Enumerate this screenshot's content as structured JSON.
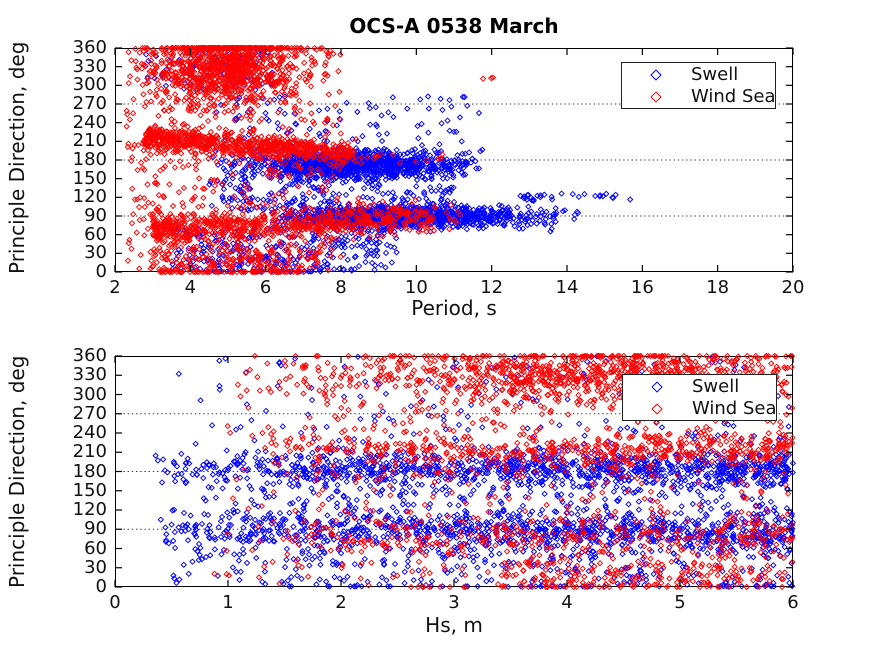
{
  "figure": {
    "title": "OCS-A 0538 March",
    "background_color": "#ffffff",
    "axis_color": "#000000"
  },
  "chart_data": [
    {
      "type": "scatter",
      "title": "OCS-A 0538 March",
      "xlabel": "Period, s",
      "ylabel": "Principle Direction, deg",
      "xlim": [
        2,
        20
      ],
      "ylim": [
        0,
        360
      ],
      "x_ticks": [
        2,
        4,
        6,
        8,
        10,
        12,
        14,
        16,
        18,
        20
      ],
      "y_ticks": [
        0,
        30,
        60,
        90,
        120,
        150,
        180,
        210,
        240,
        270,
        300,
        330,
        360
      ],
      "grid_y_dotted": [
        90,
        180,
        270
      ],
      "grid_x": false,
      "legend_position": "northeast",
      "marker": "open-diamond",
      "distribution_model": "dense point clouds approximated by sampling clusters",
      "series": [
        {
          "name": "Swell",
          "color": "#0000ff",
          "clusters": [
            {
              "n": 1050,
              "x": {
                "dist": "normal",
                "mean": 8.4,
                "sd": 1.5,
                "min": 4.6,
                "max": 11.7
              },
              "y": {
                "dist": "normal",
                "mean": 172,
                "sd": 11,
                "min": 120,
                "max": 205
              }
            },
            {
              "n": 950,
              "x": {
                "dist": "normal",
                "mean": 9.7,
                "sd": 1.8,
                "min": 6.0,
                "max": 14.4
              },
              "y": {
                "dist": "normal",
                "mean": 89,
                "sd": 8.5,
                "min": 55,
                "max": 118
              }
            },
            {
              "n": 220,
              "x": {
                "dist": "uniform",
                "min": 4.5,
                "max": 11
              },
              "y": {
                "dist": "uniform",
                "min": 98,
                "max": 160
              }
            },
            {
              "n": 280,
              "x": {
                "dist": "uniform",
                "min": 3.5,
                "max": 9.5
              },
              "y": {
                "dist": "uniform",
                "min": 2,
                "max": 70
              }
            },
            {
              "n": 90,
              "x": {
                "dist": "uniform",
                "min": 2.8,
                "max": 6.2
              },
              "y": {
                "dist": "uniform",
                "min": 290,
                "max": 360
              }
            },
            {
              "n": 100,
              "x": {
                "dist": "uniform",
                "min": 4.5,
                "max": 11.8
              },
              "y": {
                "dist": "uniform",
                "min": 195,
                "max": 285
              }
            },
            {
              "n": 30,
              "x": {
                "dist": "uniform",
                "min": 12.4,
                "max": 15.8
              },
              "y": {
                "dist": "normal",
                "mean": 121,
                "sd": 3,
                "min": 112,
                "max": 130
              }
            },
            {
              "n": 30,
              "x": {
                "dist": "uniform",
                "min": 4.5,
                "max": 7.5
              },
              "y": {
                "dist": "const",
                "value": 1
              }
            }
          ]
        },
        {
          "name": "Wind Sea",
          "color": "#ff0000",
          "clusters": [
            {
              "n": 900,
              "x": {
                "dist": "normal",
                "mean": 4.9,
                "sd": 1.0,
                "min": 2.7,
                "max": 8.0
              },
              "y": {
                "dist": "normal",
                "mean": 332,
                "sd": 30,
                "min": 180,
                "max": 360,
                "clamp": true
              }
            },
            {
              "n": 700,
              "x": {
                "dist": "power",
                "min": 2.8,
                "max": 8.4,
                "exp": 1.3
              },
              "y": {
                "dist": "normal",
                "meanFromX": [
                  231,
                  -5.0
                ],
                "sd": 9
              }
            },
            {
              "n": 620,
              "x": {
                "dist": "power",
                "min": 3.0,
                "max": 10.5,
                "exp": 1.35
              },
              "y": {
                "dist": "normal",
                "meanFromX": [
                  61,
                  2.6
                ],
                "sd": 12
              }
            },
            {
              "n": 500,
              "x": {
                "dist": "power",
                "min": 2.3,
                "max": 8.0,
                "exp": 1.15
              },
              "y": {
                "dist": "uniform",
                "min": 0,
                "max": 360
              }
            },
            {
              "n": 160,
              "x": {
                "dist": "uniform",
                "min": 3.0,
                "max": 7.5
              },
              "y": {
                "dist": "uniform",
                "min": 0,
                "max": 45
              }
            },
            {
              "n": 60,
              "x": {
                "dist": "uniform",
                "min": 3.2,
                "max": 7.0
              },
              "y": {
                "dist": "const",
                "value": 0
              }
            },
            {
              "n": 45,
              "x": {
                "dist": "uniform",
                "min": 8.0,
                "max": 11.3
              },
              "y": {
                "dist": "normal",
                "mean": 92,
                "sd": 9
              }
            },
            {
              "n": 15,
              "x": {
                "dist": "uniform",
                "min": 8.2,
                "max": 10.8
              },
              "y": {
                "dist": "normal",
                "mean": 184,
                "sd": 6
              }
            },
            {
              "n": 3,
              "x": {
                "dist": "uniform",
                "min": 11.7,
                "max": 12.2
              },
              "y": {
                "dist": "uniform",
                "min": 298,
                "max": 315
              }
            }
          ]
        }
      ]
    },
    {
      "type": "scatter",
      "xlabel": "Hs, m",
      "ylabel": "Principle Direction, deg",
      "xlim": [
        0,
        6
      ],
      "ylim": [
        0,
        360
      ],
      "x_ticks": [
        0,
        1,
        2,
        3,
        4,
        5,
        6
      ],
      "y_ticks": [
        0,
        30,
        60,
        90,
        120,
        150,
        180,
        210,
        240,
        270,
        300,
        330,
        360
      ],
      "grid_y_dotted": [
        90,
        180,
        270
      ],
      "grid_x": false,
      "legend_position": "northeast",
      "marker": "open-diamond",
      "distribution_model": "dense point clouds approximated by sampling clusters",
      "series": [
        {
          "name": "Swell",
          "color": "#0000ff",
          "clusters": [
            {
              "n": 950,
              "x": {
                "dist": "power",
                "min": 0.35,
                "max": 6,
                "exp": 0.72
              },
              "y": {
                "dist": "normal",
                "mean": 186,
                "sd": 13,
                "min": 140,
                "max": 228
              }
            },
            {
              "n": 850,
              "x": {
                "dist": "power",
                "min": 0.35,
                "max": 6,
                "exp": 0.72
              },
              "y": {
                "dist": "normal",
                "mean": 85,
                "sd": 14,
                "min": 40,
                "max": 125
              }
            },
            {
              "n": 350,
              "x": {
                "dist": "power",
                "min": 0.5,
                "max": 6,
                "exp": 0.8
              },
              "y": {
                "dist": "uniform",
                "min": 100,
                "max": 170
              }
            },
            {
              "n": 260,
              "x": {
                "dist": "power",
                "min": 0.5,
                "max": 6,
                "exp": 0.8
              },
              "y": {
                "dist": "uniform",
                "min": 0,
                "max": 60
              }
            },
            {
              "n": 170,
              "x": {
                "dist": "power",
                "min": 0.5,
                "max": 6,
                "exp": 0.8
              },
              "y": {
                "dist": "uniform",
                "min": 210,
                "max": 360
              }
            },
            {
              "n": 40,
              "x": {
                "dist": "uniform",
                "min": 1.5,
                "max": 6
              },
              "y": {
                "dist": "const",
                "value": 1
              }
            }
          ]
        },
        {
          "name": "Wind Sea",
          "color": "#ff0000",
          "clusters": [
            {
              "n": 820,
              "x": {
                "dist": "normal",
                "mean": 4.3,
                "sd": 1.2,
                "min": 1.0,
                "max": 6.0
              },
              "y": {
                "dist": "normal",
                "mean": 330,
                "sd": 24,
                "min": 240,
                "max": 360,
                "clamp": true
              }
            },
            {
              "n": 460,
              "x": {
                "dist": "power",
                "min": 1.2,
                "max": 6,
                "exp": 0.75
              },
              "y": {
                "dist": "normal",
                "mean": 214,
                "sd": 13
              }
            },
            {
              "n": 620,
              "x": {
                "dist": "power",
                "min": 0.8,
                "max": 6,
                "exp": 0.7
              },
              "y": {
                "dist": "uniform",
                "min": 0,
                "max": 360
              }
            },
            {
              "n": 260,
              "x": {
                "dist": "power",
                "min": 1.4,
                "max": 6,
                "exp": 0.75
              },
              "y": {
                "dist": "normal",
                "mean": 80,
                "sd": 16
              }
            },
            {
              "n": 150,
              "x": {
                "dist": "uniform",
                "min": 3.4,
                "max": 6
              },
              "y": {
                "dist": "uniform",
                "min": 0,
                "max": 40
              }
            },
            {
              "n": 40,
              "x": {
                "dist": "uniform",
                "min": 2.5,
                "max": 6
              },
              "y": {
                "dist": "const",
                "value": 0
              }
            }
          ]
        }
      ]
    }
  ]
}
